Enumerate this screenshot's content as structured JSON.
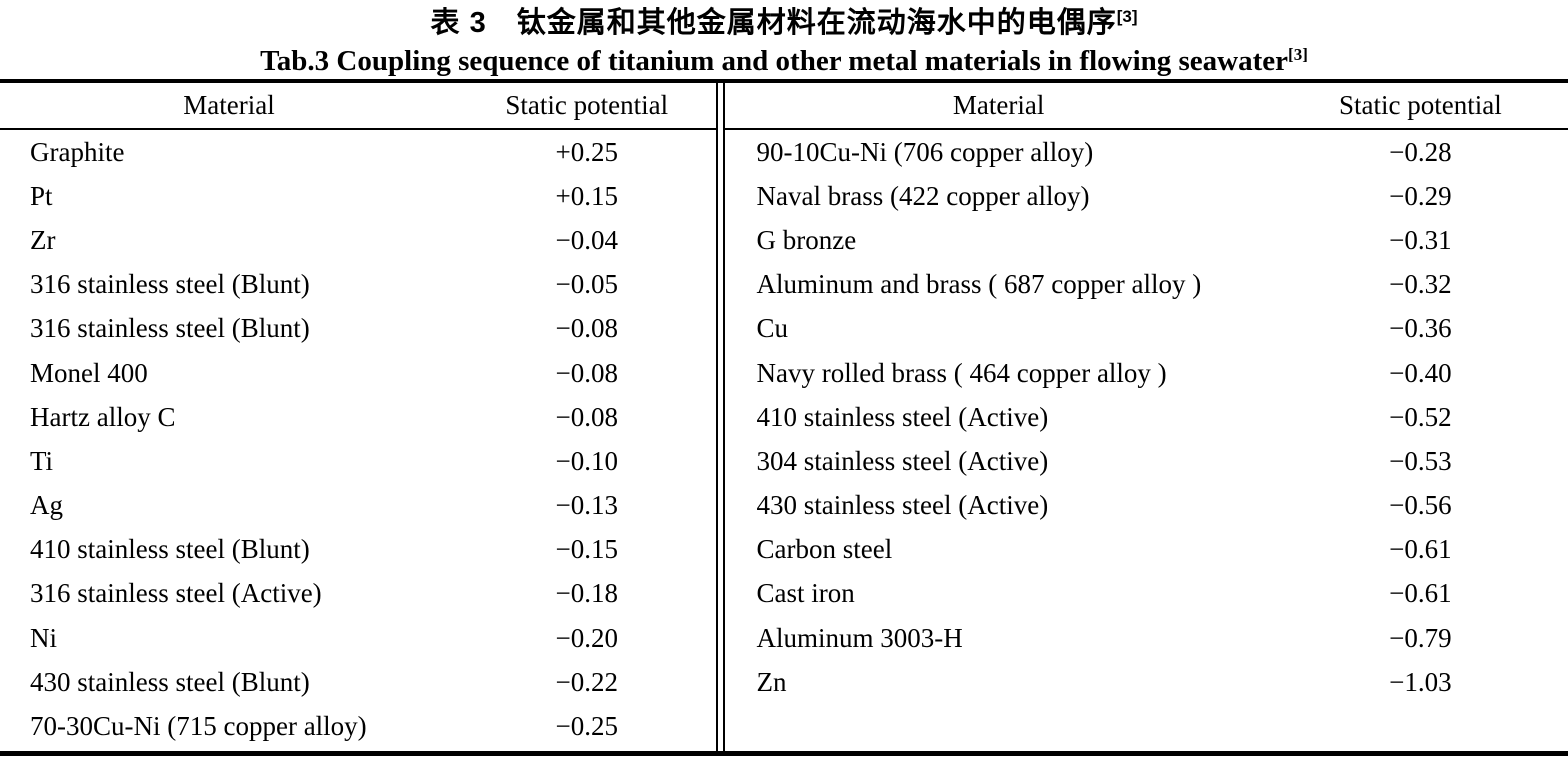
{
  "caption": {
    "title_zh": "表 3　钛金属和其他金属材料在流动海水中的电偶序",
    "title_zh_ref": "[3]",
    "title_en": "Tab.3 Coupling sequence of titanium and other metal materials in flowing seawater",
    "title_en_ref": "[3]"
  },
  "table": {
    "headers": {
      "material": "Material",
      "potential": "Static potential"
    },
    "left_rows": [
      {
        "material": "Graphite",
        "potential": "+0.25"
      },
      {
        "material": "Pt",
        "potential": "+0.15"
      },
      {
        "material": "Zr",
        "potential": "−0.04"
      },
      {
        "material": "316 stainless steel (Blunt)",
        "potential": "−0.05"
      },
      {
        "material": "316 stainless steel (Blunt)",
        "potential": "−0.08"
      },
      {
        "material": "Monel 400",
        "potential": "−0.08"
      },
      {
        "material": "Hartz alloy C",
        "potential": "−0.08"
      },
      {
        "material": "Ti",
        "potential": "−0.10"
      },
      {
        "material": "Ag",
        "potential": "−0.13"
      },
      {
        "material": "410 stainless steel (Blunt)",
        "potential": "−0.15"
      },
      {
        "material": "316 stainless steel (Active)",
        "potential": "−0.18"
      },
      {
        "material": "Ni",
        "potential": "−0.20"
      },
      {
        "material": "430 stainless steel (Blunt)",
        "potential": "−0.22"
      },
      {
        "material": "70-30Cu-Ni (715 copper alloy)",
        "potential": "−0.25"
      }
    ],
    "right_rows": [
      {
        "material": "90-10Cu-Ni (706 copper alloy)",
        "potential": "−0.28"
      },
      {
        "material": "Naval brass (422 copper alloy)",
        "potential": "−0.29"
      },
      {
        "material": "G bronze",
        "potential": "−0.31"
      },
      {
        "material": "Aluminum and brass ( 687 copper alloy )",
        "potential": "−0.32"
      },
      {
        "material": "Cu",
        "potential": "−0.36"
      },
      {
        "material": "Navy rolled brass ( 464 copper alloy )",
        "potential": "−0.40"
      },
      {
        "material": "410 stainless steel (Active)",
        "potential": "−0.52"
      },
      {
        "material": "304 stainless steel (Active)",
        "potential": "−0.53"
      },
      {
        "material": "430 stainless steel (Active)",
        "potential": "−0.56"
      },
      {
        "material": "Carbon steel",
        "potential": "−0.61"
      },
      {
        "material": "Cast iron",
        "potential": "−0.61"
      },
      {
        "material": "Aluminum 3003-H",
        "potential": "−0.79"
      },
      {
        "material": "Zn",
        "potential": "−1.03"
      }
    ],
    "colors": {
      "rule": "#000000",
      "text": "#000000",
      "background": "#ffffff"
    }
  }
}
